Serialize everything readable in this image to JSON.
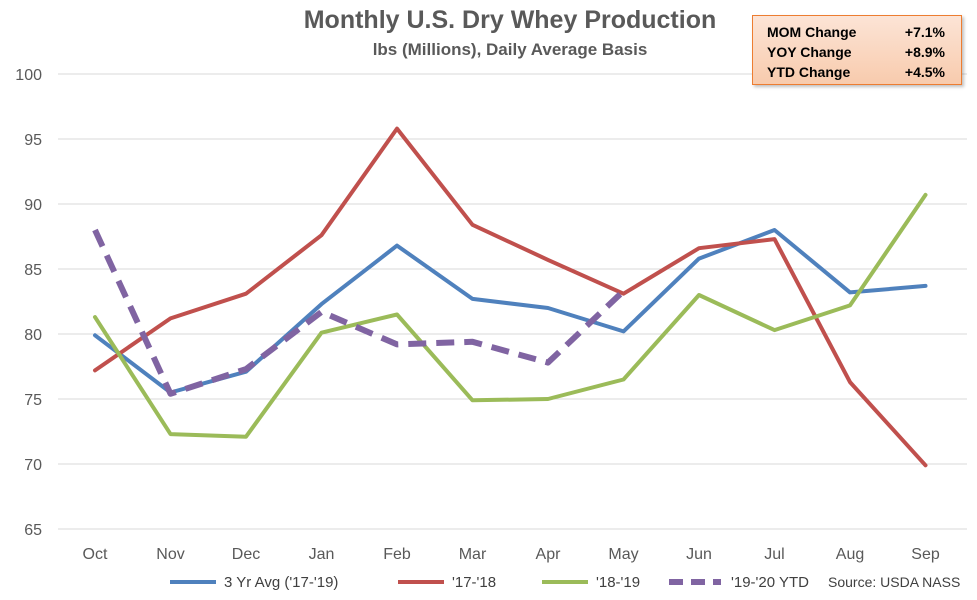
{
  "chart_data": {
    "type": "line",
    "title": "Monthly U.S. Dry Whey Production",
    "subtitle": "lbs (Millions), Daily Average Basis",
    "categories": [
      "Oct",
      "Nov",
      "Dec",
      "Jan",
      "Feb",
      "Mar",
      "Apr",
      "May",
      "Jun",
      "Jul",
      "Aug",
      "Sep"
    ],
    "ylim": [
      65,
      100
    ],
    "yticks": [
      "65",
      "70",
      "75",
      "80",
      "85",
      "90",
      "95",
      "100"
    ],
    "grid": true,
    "legend_position": "bottom",
    "series": [
      {
        "name": "3 Yr Avg ('17-'19)",
        "color": "#4F81BD",
        "style": "solid",
        "values": [
          79.9,
          75.5,
          77.1,
          82.3,
          86.8,
          82.7,
          82.0,
          80.2,
          85.8,
          88.0,
          83.2,
          83.7
        ]
      },
      {
        "name": "'17-'18",
        "color": "#C0504D",
        "style": "solid",
        "values": [
          77.2,
          81.2,
          83.1,
          87.6,
          95.8,
          88.4,
          85.7,
          83.1,
          86.6,
          87.3,
          76.3,
          69.9
        ]
      },
      {
        "name": "'18-'19",
        "color": "#9BBB59",
        "style": "solid",
        "values": [
          81.3,
          72.3,
          72.1,
          80.1,
          81.5,
          74.9,
          75.0,
          76.5,
          83.0,
          80.3,
          82.2,
          90.7
        ]
      },
      {
        "name": "'19-'20 YTD",
        "color": "#8064A2",
        "style": "dashed",
        "values": [
          88.0,
          75.4,
          77.3,
          81.7,
          79.2,
          79.4,
          77.8,
          83.3,
          null,
          null,
          null,
          null
        ]
      }
    ]
  },
  "change_box": {
    "rows": [
      {
        "label": "MOM Change",
        "value": "+7.1%"
      },
      {
        "label": "YOY Change",
        "value": "+8.9%"
      },
      {
        "label": "YTD Change",
        "value": "+4.5%"
      }
    ]
  },
  "source": "Source: USDA NASS"
}
